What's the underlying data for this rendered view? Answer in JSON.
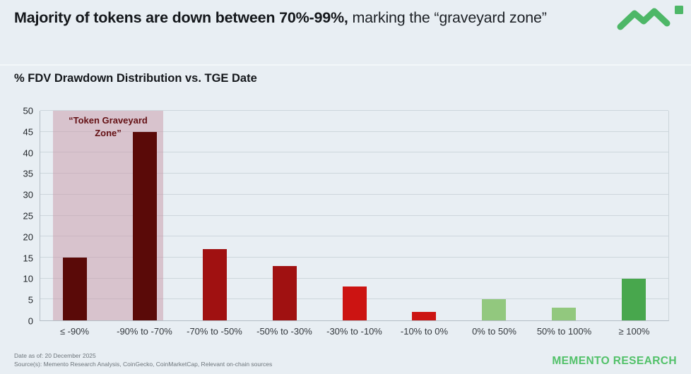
{
  "header": {
    "title_bold": "Majority of tokens are down between 70%-99%,",
    "title_regular": " marking the “graveyard zone”"
  },
  "chart_data": {
    "type": "bar",
    "title": "% FDV Drawdown Distribution vs. TGE Date",
    "categories": [
      "≤ -90%",
      "-90% to -70%",
      "-70% to -50%",
      "-50% to -30%",
      "-30% to -10%",
      "-10% to 0%",
      "0% to 50%",
      "50% to 100%",
      "≥ 100%"
    ],
    "values": [
      15,
      45,
      17,
      13,
      8,
      2,
      5,
      3,
      10
    ],
    "bar_colors": [
      "#5a0a08",
      "#5a0a08",
      "#a01111",
      "#a01111",
      "#cc1412",
      "#cc1412",
      "#92c87e",
      "#92c87e",
      "#48a74d"
    ],
    "xlabel": "",
    "ylabel": "",
    "ylim": [
      0,
      50
    ],
    "ytick_step": 5,
    "grid": true,
    "legend": "none",
    "annotation": {
      "label": "“Token Graveyard Zone”",
      "zone_categories": [
        "≤ -90%",
        "-90% to -70%"
      ],
      "zone_color": "rgba(201,156,170,0.52)",
      "label_color": "#641014"
    }
  },
  "footer": {
    "date_label": "Date as of: 20 December 2025",
    "sources_label": "Source(s): Memento Research Analysis, CoinGecko, CoinMarketCap, Relevant on-chain sources",
    "brand": "MEMENTO RESEARCH"
  },
  "colors": {
    "background": "#e8eef3",
    "brand_green": "#52c169",
    "graveyard_dark_red": "#5a0a08",
    "mid_red": "#a01111",
    "bright_red": "#cc1412",
    "light_green": "#92c87e",
    "medium_green": "#48a74d",
    "zone_pink": "#ddcad0"
  }
}
